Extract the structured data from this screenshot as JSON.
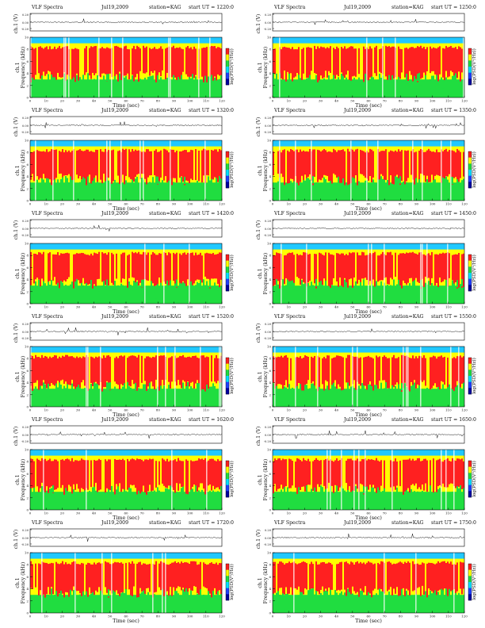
{
  "page": {
    "title": ""
  },
  "chart_data": [
    {
      "type": "heatmap",
      "col": 0,
      "row": 0,
      "header": {
        "label": "VLF Spectra",
        "date": "Jul19,2009",
        "station": "station=KAG",
        "start": "start UT = 1220:0"
      }
    },
    {
      "type": "heatmap",
      "col": 1,
      "row": 0,
      "header": {
        "label": "VLF Spectra",
        "date": "Jul19,2009",
        "station": "station=KAG",
        "start": "start UT = 1250:0"
      }
    },
    {
      "type": "heatmap",
      "col": 0,
      "row": 1,
      "header": {
        "label": "VLF Spectra",
        "date": "Jul19,2009",
        "station": "station=KAG",
        "start": "start UT = 1320:0"
      }
    },
    {
      "type": "heatmap",
      "col": 1,
      "row": 1,
      "header": {
        "label": "VLF Spectra",
        "date": "Jul19,2009",
        "station": "station=KAG",
        "start": "start UT = 1350:0"
      }
    },
    {
      "type": "heatmap",
      "col": 0,
      "row": 2,
      "header": {
        "label": "VLF Spectra",
        "date": "Jul19,2009",
        "station": "station=KAG",
        "start": "start UT = 1420:0"
      }
    },
    {
      "type": "heatmap",
      "col": 1,
      "row": 2,
      "header": {
        "label": "VLF Spectra",
        "date": "Jul19,2009",
        "station": "station=KAG",
        "start": "start UT = 1450:0"
      }
    },
    {
      "type": "heatmap",
      "col": 0,
      "row": 3,
      "header": {
        "label": "VLF Spectra",
        "date": "Jul19,2009",
        "station": "station=KAG",
        "start": "start UT = 1520:0"
      }
    },
    {
      "type": "heatmap",
      "col": 1,
      "row": 3,
      "header": {
        "label": "VLF Spectra",
        "date": "Jul19,2009",
        "station": "station=KAG",
        "start": "start UT = 1550:0"
      }
    },
    {
      "type": "heatmap",
      "col": 0,
      "row": 4,
      "header": {
        "label": "VLF Spectra",
        "date": "Jul19,2009",
        "station": "station=KAG",
        "start": "start UT = 1620:0"
      }
    },
    {
      "type": "heatmap",
      "col": 1,
      "row": 4,
      "header": {
        "label": "VLF Spectra",
        "date": "Jul19,2009",
        "station": "station=KAG",
        "start": "start UT = 1650:0"
      }
    },
    {
      "type": "heatmap",
      "col": 0,
      "row": 5,
      "header": {
        "label": "VLF Spectra",
        "date": "Jul19,2009",
        "station": "station=KAG",
        "start": "start UT = 1720:0"
      }
    },
    {
      "type": "heatmap",
      "col": 1,
      "row": 5,
      "header": {
        "label": "VLF Spectra",
        "date": "Jul19,2009",
        "station": "station=KAG",
        "start": "start UT = 1750:0"
      }
    }
  ],
  "shared": {
    "ch1_ylabel": "ch.1 (V)",
    "ch1_ticks": [
      "0.20",
      "0.00",
      "-0.20"
    ],
    "ch1_ylim": [
      -0.2,
      0.2
    ],
    "freq_ylabel_top": "ch.1",
    "freq_ylabel": "Frequency (kHz)",
    "freq_ticks": [
      "0",
      "2",
      "4",
      "6",
      "8",
      "10"
    ],
    "freq_ylim": [
      0,
      10
    ],
    "xlabel": "Time (sec)",
    "x_ticks": [
      "0",
      "10",
      "20",
      "30",
      "40",
      "50",
      "60",
      "70",
      "80",
      "90",
      "100",
      "110",
      "120"
    ],
    "xlim": [
      0,
      120
    ],
    "colorbar_label": "log(PSD(V²/Hz))",
    "colorbar_colors": [
      "#ff2020",
      "#ffff00",
      "#20dd40",
      "#00e0ff",
      "#2040ff",
      "#0000a0"
    ],
    "spectrogram_colors": {
      "low": "#20c8ff",
      "mid_low": "#20dd40",
      "mid": "#ffff00",
      "high": "#ff2020",
      "gap": "#ffffff"
    },
    "frequency_bands_khz": {
      "band_edge": 9.0,
      "noise_top": 8.6,
      "strong_low": 4.5,
      "green_low": 3.0
    }
  }
}
